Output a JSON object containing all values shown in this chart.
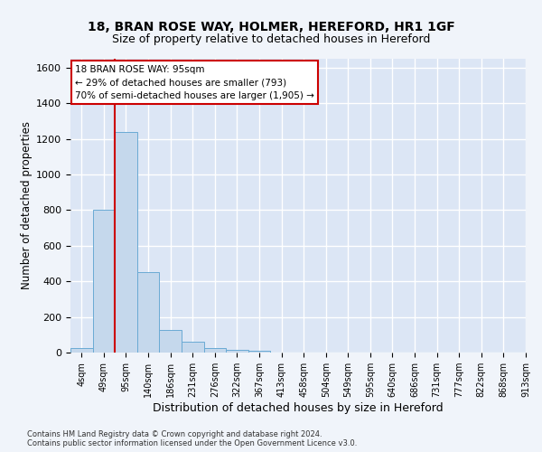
{
  "title": "18, BRAN ROSE WAY, HOLMER, HEREFORD, HR1 1GF",
  "subtitle": "Size of property relative to detached houses in Hereford",
  "xlabel": "Distribution of detached houses by size in Hereford",
  "ylabel": "Number of detached properties",
  "bar_values": [
    25,
    800,
    1240,
    450,
    125,
    60,
    25,
    15,
    10,
    0,
    0,
    0,
    0,
    0,
    0,
    0,
    0,
    0,
    0,
    0
  ],
  "bar_labels": [
    "4sqm",
    "49sqm",
    "95sqm",
    "140sqm",
    "186sqm",
    "231sqm",
    "276sqm",
    "322sqm",
    "367sqm",
    "413sqm",
    "458sqm",
    "504sqm",
    "549sqm",
    "595sqm",
    "640sqm",
    "686sqm",
    "731sqm",
    "777sqm",
    "822sqm",
    "868sqm",
    "913sqm"
  ],
  "bar_color": "#c5d8ec",
  "bar_edge_color": "#6aaad4",
  "red_line_index": 2,
  "ylim": [
    0,
    1650
  ],
  "yticks": [
    0,
    200,
    400,
    600,
    800,
    1000,
    1200,
    1400,
    1600
  ],
  "annotation_line1": "18 BRAN ROSE WAY: 95sqm",
  "annotation_line2": "← 29% of detached houses are smaller (793)",
  "annotation_line3": "70% of semi-detached houses are larger (1,905) →",
  "annotation_box_color": "#ffffff",
  "annotation_box_edgecolor": "#cc0000",
  "footer_line1": "Contains HM Land Registry data © Crown copyright and database right 2024.",
  "footer_line2": "Contains public sector information licensed under the Open Government Licence v3.0.",
  "plot_bg_color": "#dce6f5",
  "fig_bg_color": "#f0f4fa",
  "grid_color": "#ffffff",
  "title_fontsize": 10,
  "subtitle_fontsize": 9
}
